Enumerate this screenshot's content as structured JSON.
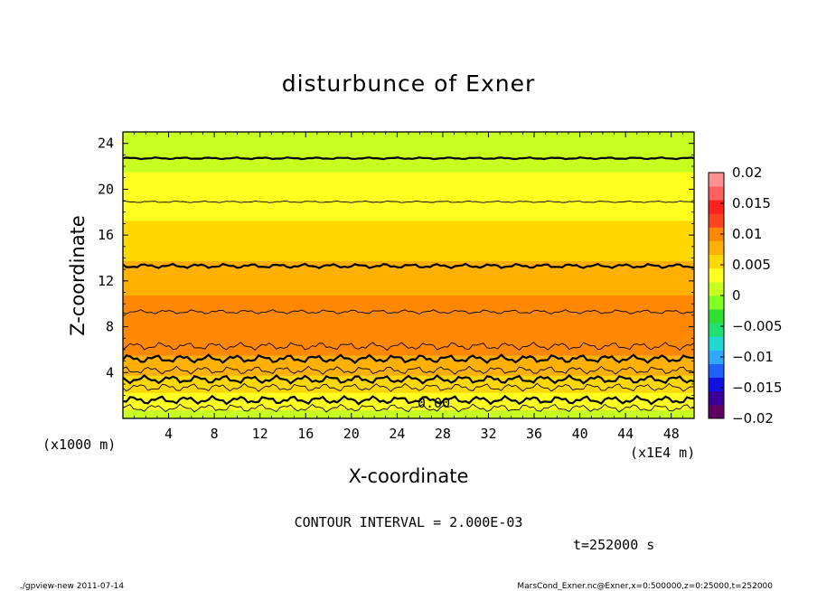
{
  "chart_data": {
    "type": "heatmap",
    "title": "disturbunce of Exner",
    "xlabel": "X-coordinate",
    "ylabel": "Z-coordinate",
    "x_scale_note": "(x1E4 m)",
    "y_scale_note": "(x1000 m)",
    "xlim": [
      0,
      50
    ],
    "ylim": [
      0,
      25
    ],
    "x_ticks": [
      4,
      8,
      12,
      16,
      20,
      24,
      28,
      32,
      36,
      40,
      44,
      48
    ],
    "y_ticks": [
      4,
      8,
      12,
      16,
      20,
      24
    ],
    "x_tick_labels": [
      "4",
      "8",
      "12",
      "16",
      "20",
      "24",
      "28",
      "32",
      "36",
      "40",
      "44",
      "48"
    ],
    "y_tick_labels": [
      "4",
      "8",
      "12",
      "16",
      "20",
      "24"
    ],
    "colorbar": {
      "range": [
        -0.02,
        0.02
      ],
      "tick_values": [
        0.02,
        0.015,
        0.01,
        0.005,
        0,
        -0.005,
        -0.01,
        -0.015,
        -0.02
      ],
      "tick_labels": [
        "0.02",
        "0.015",
        "0.01",
        "0.005",
        "0",
        "−0.005",
        "−0.01",
        "−0.015",
        "−0.02"
      ],
      "colors": [
        "#600060",
        "#3a0098",
        "#1010e0",
        "#2060ff",
        "#30a8ff",
        "#20d8d0",
        "#20e070",
        "#30e030",
        "#80ff20",
        "#c8ff20",
        "#ffff20",
        "#ffd800",
        "#ffb000",
        "#ff8800",
        "#ff4420",
        "#ff2020",
        "#ff6060",
        "#ff9090"
      ]
    },
    "contour_label": "0.00",
    "contour_interval": "CONTOUR INTERVAL = 2.000E-03",
    "time_label": "t=252000 s",
    "profile": [
      {
        "z": 0,
        "value": 0.0006
      },
      {
        "z": 1,
        "value": 0.0025
      },
      {
        "z": 2,
        "value": 0.004
      },
      {
        "z": 3,
        "value": 0.0055
      },
      {
        "z": 4,
        "value": 0.007
      },
      {
        "z": 5,
        "value": 0.0085
      },
      {
        "z": 6,
        "value": 0.0095
      },
      {
        "z": 7,
        "value": 0.0102
      },
      {
        "z": 8,
        "value": 0.0105
      },
      {
        "z": 9,
        "value": 0.0102
      },
      {
        "z": 10,
        "value": 0.0095
      },
      {
        "z": 11,
        "value": 0.0088
      },
      {
        "z": 12,
        "value": 0.008
      },
      {
        "z": 13,
        "value": 0.0072
      },
      {
        "z": 14,
        "value": 0.0064
      },
      {
        "z": 15,
        "value": 0.0058
      },
      {
        "z": 16,
        "value": 0.0052
      },
      {
        "z": 17,
        "value": 0.0046
      },
      {
        "z": 18,
        "value": 0.004
      },
      {
        "z": 19,
        "value": 0.0035
      },
      {
        "z": 20,
        "value": 0.003
      },
      {
        "z": 21,
        "value": 0.0025
      },
      {
        "z": 22,
        "value": 0.002
      },
      {
        "z": 23,
        "value": 0.0015
      },
      {
        "z": 24,
        "value": 0.0011
      },
      {
        "z": 25,
        "value": 0.0008
      }
    ],
    "contour_levels_z": [
      {
        "z": 22.7,
        "bold": true
      },
      {
        "z": 18.9,
        "bold": false
      },
      {
        "z": 13.3,
        "bold": true
      },
      {
        "z": 9.3,
        "bold": false
      },
      {
        "z": 6.3,
        "bold": false
      },
      {
        "z": 5.2,
        "bold": true
      },
      {
        "z": 4.2,
        "bold": false
      },
      {
        "z": 3.4,
        "bold": true
      },
      {
        "z": 2.7,
        "bold": false
      },
      {
        "z": 1.6,
        "bold": true
      },
      {
        "z": 0.9,
        "bold": false
      }
    ]
  },
  "footer": {
    "left": "./gpview-new   2011-07-14",
    "right": "MarsCond_Exner.nc@Exner,x=0:500000,z=0:25000,t=252000"
  }
}
